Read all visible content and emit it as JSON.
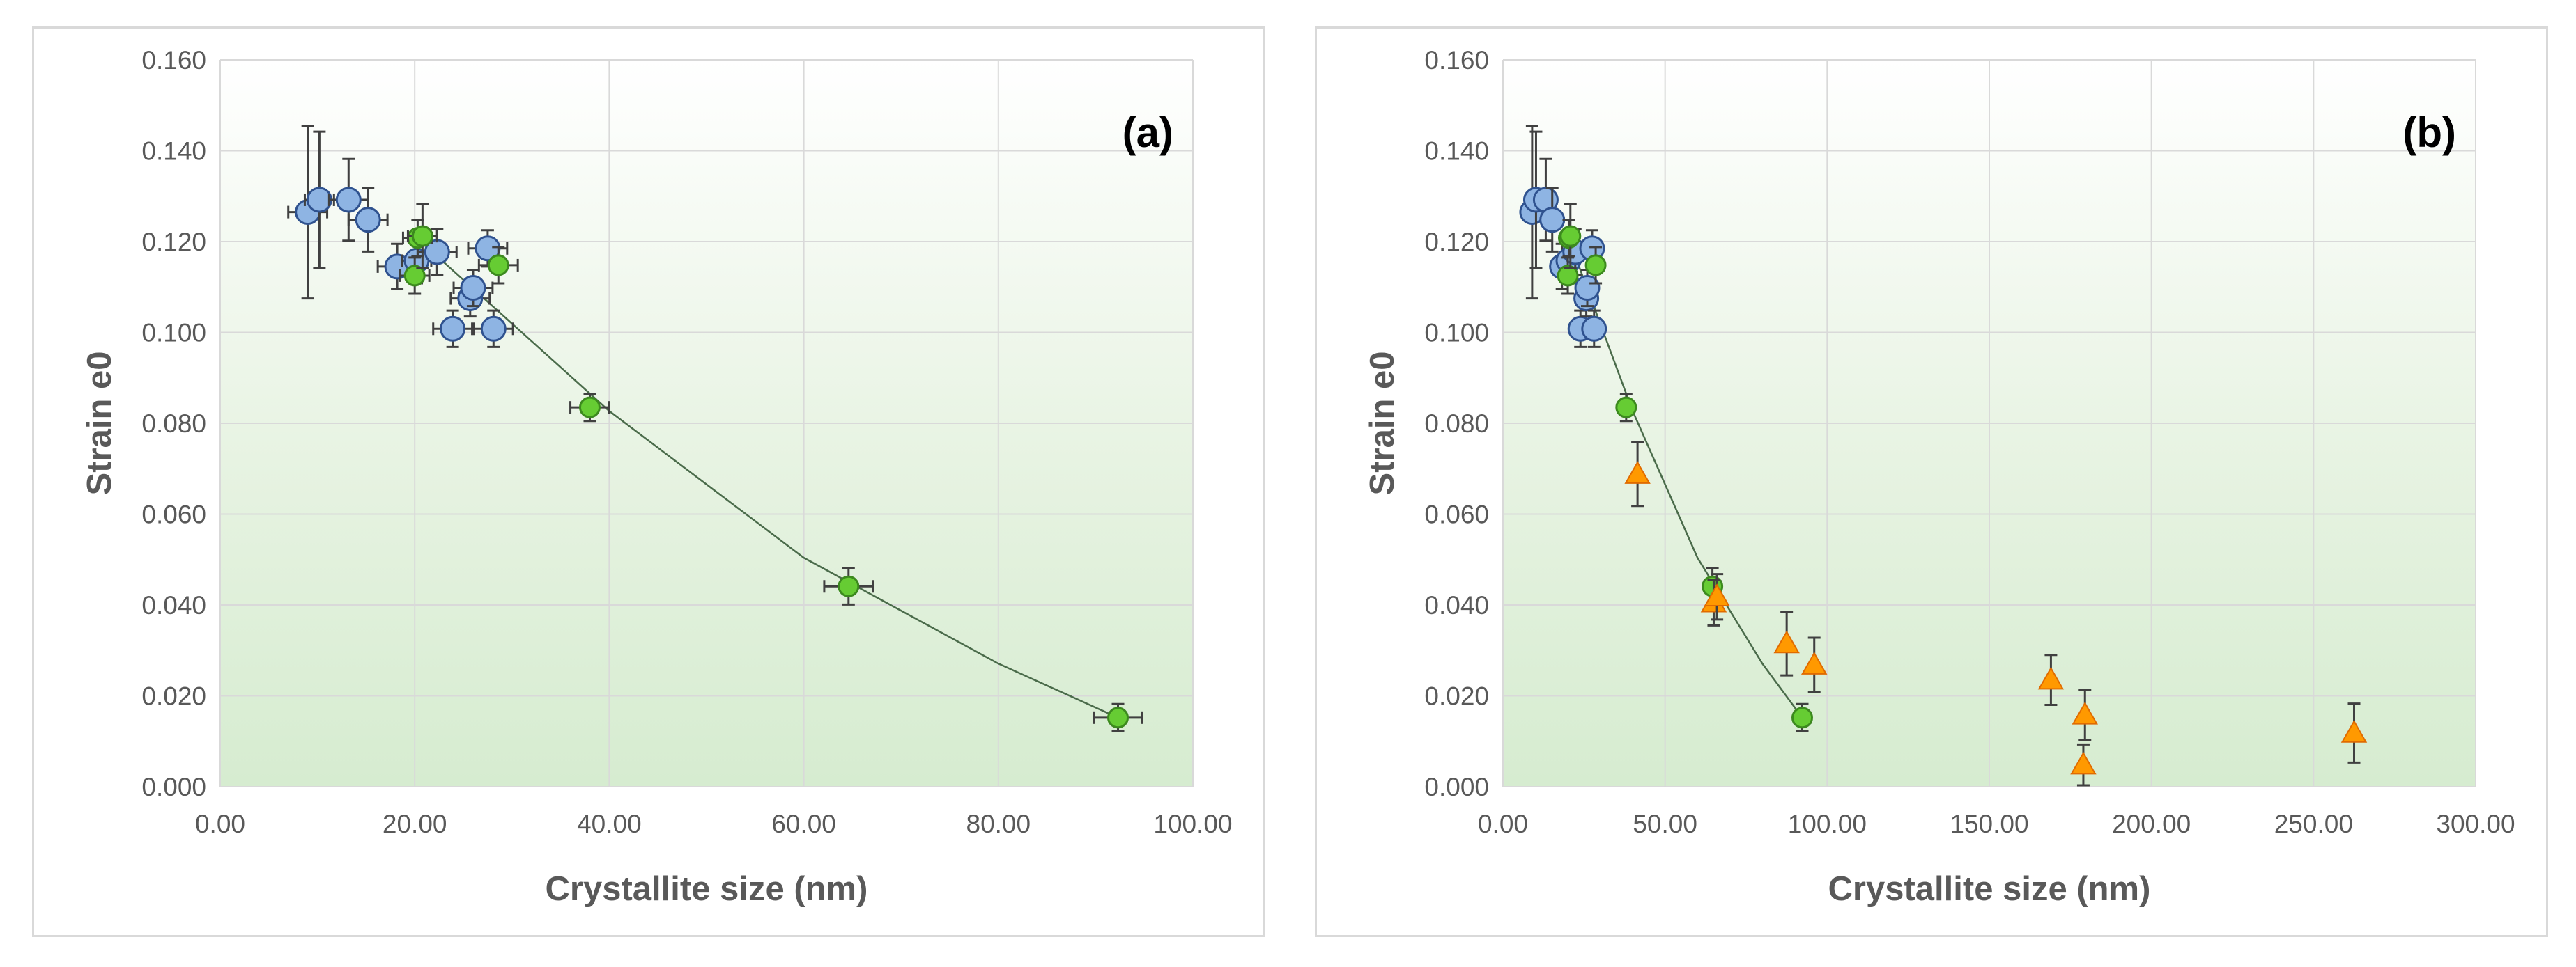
{
  "chart_data": [
    {
      "type": "scatter",
      "panel_label": "(a)",
      "xlabel": "Crystallite size (nm)",
      "ylabel": "Strain e0",
      "xlim": [
        0,
        100
      ],
      "ylim": [
        0,
        0.16
      ],
      "x_ticks": [
        "0.00",
        "20.00",
        "40.00",
        "60.00",
        "80.00",
        "100.00"
      ],
      "y_ticks": [
        "0.000",
        "0.020",
        "0.040",
        "0.060",
        "0.080",
        "0.100",
        "0.120",
        "0.140",
        "0.160"
      ],
      "grid": true,
      "background": "gradient white-to-green",
      "series": [
        {
          "name": "blue",
          "color": "#8eb4e3",
          "marker": "circle",
          "points": [
            {
              "x": 9.0,
              "y": 0.1265,
              "xerr": 2.0,
              "yerr": 0.019
            },
            {
              "x": 10.2,
              "y": 0.1292,
              "xerr": 1.5,
              "yerr": 0.015
            },
            {
              "x": 13.2,
              "y": 0.1292,
              "xerr": 2.0,
              "yerr": 0.009
            },
            {
              "x": 15.2,
              "y": 0.1248,
              "xerr": 2.0,
              "yerr": 0.007
            },
            {
              "x": 18.2,
              "y": 0.1145,
              "xerr": 2.0,
              "yerr": 0.005
            },
            {
              "x": 20.2,
              "y": 0.1158,
              "xerr": 1.5,
              "yerr": 0.005
            },
            {
              "x": 22.3,
              "y": 0.1177,
              "xerr": 2.0,
              "yerr": 0.005
            },
            {
              "x": 23.9,
              "y": 0.1008,
              "xerr": 2.0,
              "yerr": 0.004
            },
            {
              "x": 25.7,
              "y": 0.1075,
              "xerr": 2.0,
              "yerr": 0.004
            },
            {
              "x": 26.0,
              "y": 0.1098,
              "xerr": 2.0,
              "yerr": 0.004
            },
            {
              "x": 27.5,
              "y": 0.1185,
              "xerr": 2.0,
              "yerr": 0.004
            },
            {
              "x": 28.1,
              "y": 0.1008,
              "xerr": 2.0,
              "yerr": 0.004
            }
          ]
        },
        {
          "name": "green",
          "color": "#66cc33",
          "marker": "circle",
          "points": [
            {
              "x": 20.0,
              "y": 0.1125,
              "xerr": 1.5,
              "yerr": 0.004
            },
            {
              "x": 20.3,
              "y": 0.1208,
              "xerr": 1.5,
              "yerr": 0.004
            },
            {
              "x": 20.8,
              "y": 0.1212,
              "xerr": 1.5,
              "yerr": 0.007
            },
            {
              "x": 28.6,
              "y": 0.1148,
              "xerr": 2.0,
              "yerr": 0.004
            },
            {
              "x": 38.0,
              "y": 0.0835,
              "xerr": 2.0,
              "yerr": 0.003
            },
            {
              "x": 64.6,
              "y": 0.0441,
              "xerr": 2.5,
              "yerr": 0.004
            },
            {
              "x": 92.3,
              "y": 0.0152,
              "xerr": 2.5,
              "yerr": 0.003
            }
          ]
        }
      ],
      "trendline": [
        [
          20.0,
          0.1212
        ],
        [
          40.0,
          0.0827
        ],
        [
          60.0,
          0.0504
        ],
        [
          80.0,
          0.0271
        ],
        [
          92.3,
          0.0152
        ]
      ]
    },
    {
      "type": "scatter",
      "panel_label": "(b)",
      "xlabel": "Crystallite size (nm)",
      "ylabel": "Strain e0",
      "xlim": [
        0,
        300
      ],
      "ylim": [
        0,
        0.16
      ],
      "x_ticks": [
        "0.00",
        "50.00",
        "100.00",
        "150.00",
        "200.00",
        "250.00",
        "300.00"
      ],
      "y_ticks": [
        "0.000",
        "0.020",
        "0.040",
        "0.060",
        "0.080",
        "0.100",
        "0.120",
        "0.140",
        "0.160"
      ],
      "grid": true,
      "background": "gradient white-to-green",
      "series": [
        {
          "name": "blue",
          "color": "#8eb4e3",
          "marker": "circle",
          "points": [
            {
              "x": 9.0,
              "y": 0.1265,
              "xerr": 2.0,
              "yerr": 0.019
            },
            {
              "x": 10.2,
              "y": 0.1292,
              "xerr": 1.5,
              "yerr": 0.015
            },
            {
              "x": 13.2,
              "y": 0.1292,
              "xerr": 2.0,
              "yerr": 0.009
            },
            {
              "x": 15.2,
              "y": 0.1248,
              "xerr": 2.0,
              "yerr": 0.007
            },
            {
              "x": 18.2,
              "y": 0.1145,
              "xerr": 2.0,
              "yerr": 0.005
            },
            {
              "x": 20.2,
              "y": 0.1158,
              "xerr": 1.5,
              "yerr": 0.005
            },
            {
              "x": 22.3,
              "y": 0.1177,
              "xerr": 2.0,
              "yerr": 0.005
            },
            {
              "x": 23.9,
              "y": 0.1008,
              "xerr": 2.0,
              "yerr": 0.004
            },
            {
              "x": 25.7,
              "y": 0.1075,
              "xerr": 2.0,
              "yerr": 0.004
            },
            {
              "x": 26.0,
              "y": 0.1098,
              "xerr": 2.0,
              "yerr": 0.004
            },
            {
              "x": 27.5,
              "y": 0.1185,
              "xerr": 2.0,
              "yerr": 0.004
            },
            {
              "x": 28.1,
              "y": 0.1008,
              "xerr": 2.0,
              "yerr": 0.004
            }
          ]
        },
        {
          "name": "green",
          "color": "#66cc33",
          "marker": "circle",
          "points": [
            {
              "x": 20.0,
              "y": 0.1125,
              "xerr": 1.5,
              "yerr": 0.004
            },
            {
              "x": 20.3,
              "y": 0.1208,
              "xerr": 1.5,
              "yerr": 0.004
            },
            {
              "x": 20.8,
              "y": 0.1212,
              "xerr": 1.5,
              "yerr": 0.007
            },
            {
              "x": 28.6,
              "y": 0.1148,
              "xerr": 2.0,
              "yerr": 0.004
            },
            {
              "x": 38.0,
              "y": 0.0835,
              "xerr": 2.0,
              "yerr": 0.003
            },
            {
              "x": 64.6,
              "y": 0.0441,
              "xerr": 2.5,
              "yerr": 0.004
            },
            {
              "x": 92.3,
              "y": 0.0152,
              "xerr": 2.5,
              "yerr": 0.003
            }
          ]
        },
        {
          "name": "orange",
          "color": "#ff9900",
          "marker": "triangle",
          "points": [
            {
              "x": 41.5,
              "y": 0.0688,
              "yerr": 0.007
            },
            {
              "x": 65.0,
              "y": 0.0405,
              "yerr": 0.005
            },
            {
              "x": 66.0,
              "y": 0.0418,
              "yerr": 0.005
            },
            {
              "x": 87.5,
              "y": 0.0315,
              "yerr": 0.007
            },
            {
              "x": 96.0,
              "y": 0.0268,
              "yerr": 0.006
            },
            {
              "x": 169.0,
              "y": 0.0235,
              "yerr": 0.0055
            },
            {
              "x": 179.5,
              "y": 0.0158,
              "yerr": 0.0055
            },
            {
              "x": 179.0,
              "y": 0.0048,
              "yerr": 0.0045
            },
            {
              "x": 262.5,
              "y": 0.0118,
              "yerr": 0.0065
            }
          ]
        }
      ],
      "trendline": [
        [
          20.0,
          0.1212
        ],
        [
          40.0,
          0.0827
        ],
        [
          60.0,
          0.0504
        ],
        [
          80.0,
          0.0271
        ],
        [
          92.3,
          0.0152
        ]
      ]
    }
  ]
}
